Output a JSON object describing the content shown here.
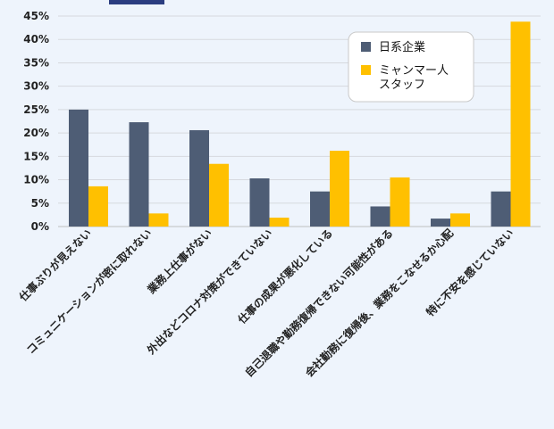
{
  "chart_data": {
    "type": "bar",
    "ylim": [
      0,
      45
    ],
    "yticks": [
      "0%",
      "5%",
      "10%",
      "15%",
      "20%",
      "25%",
      "30%",
      "35%",
      "40%",
      "45%"
    ],
    "grid": true,
    "legend_position": "top-right",
    "categories": [
      "仕事ぶりが見えない",
      "コミュニケーションが密に取れない",
      "業務上仕事がない",
      "外出などコロナ対策ができていない",
      "仕事の成果が悪化している",
      "自己退職や勤務復帰できない可能性がある",
      "会社勤務に復帰後、業務をこなせるか心配",
      "特に不安を感じていない"
    ],
    "series": [
      {
        "name": "日系企業",
        "color": "#4e5d75",
        "values": [
          25.0,
          22.3,
          20.6,
          10.3,
          7.5,
          4.3,
          1.7,
          7.5
        ]
      },
      {
        "name": "ミャンマー人スタッフ",
        "color": "#ffc000",
        "values": [
          8.6,
          2.8,
          13.4,
          1.9,
          16.2,
          10.5,
          2.8,
          43.8
        ]
      }
    ],
    "legend_labels": [
      [
        "日系企業"
      ],
      [
        "ミャンマー人",
        "スタッフ"
      ]
    ]
  },
  "header_accent_color": "#2b3d80"
}
